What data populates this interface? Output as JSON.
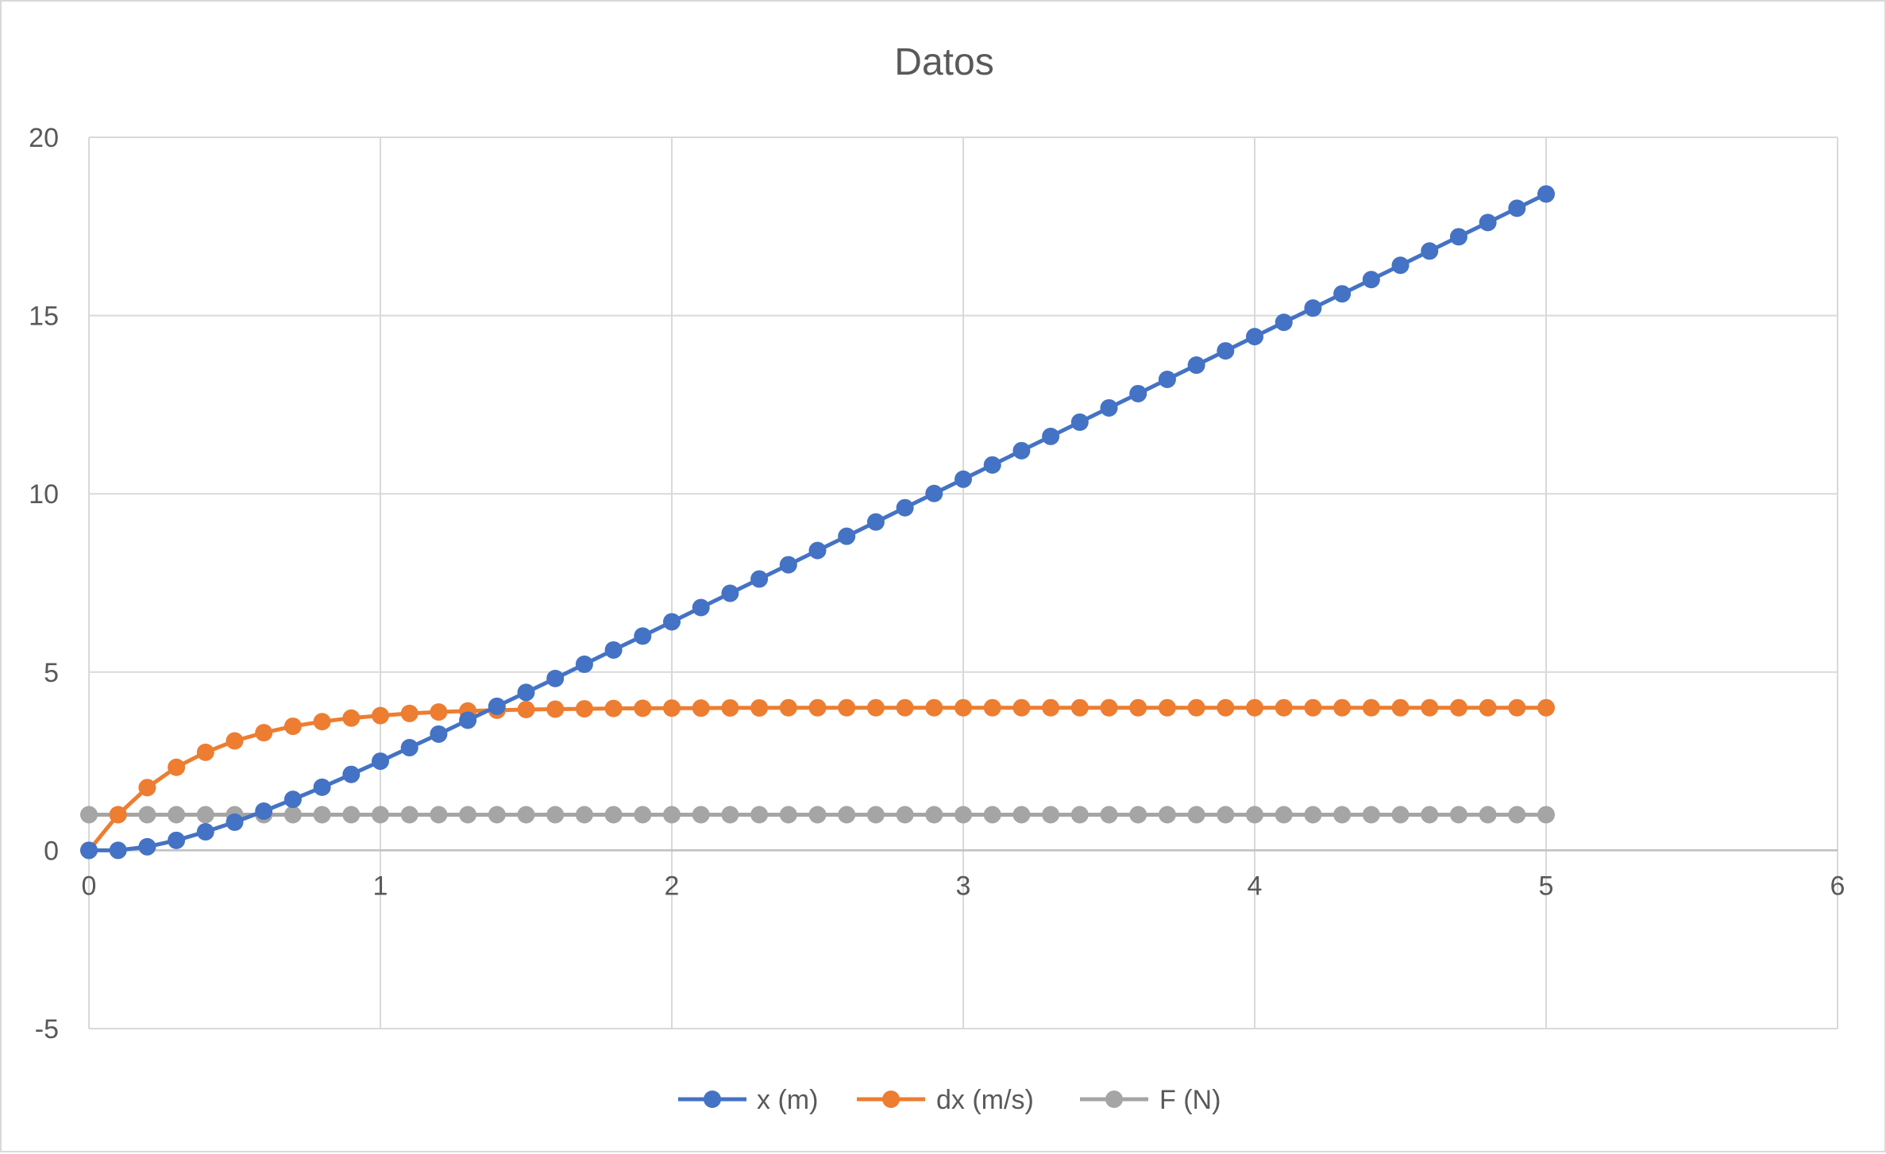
{
  "chart_data": {
    "type": "scatter",
    "title": "Datos",
    "xlabel": "",
    "ylabel": "",
    "xlim": [
      0,
      6
    ],
    "ylim": [
      -5,
      20
    ],
    "x_ticks": [
      0,
      1,
      2,
      3,
      4,
      5,
      6
    ],
    "y_ticks": [
      -5,
      0,
      5,
      10,
      15,
      20
    ],
    "grid": true,
    "legend_position": "bottom",
    "x": [
      0,
      0.1,
      0.2,
      0.3,
      0.4,
      0.5,
      0.6,
      0.7,
      0.8,
      0.9,
      1.0,
      1.1,
      1.2,
      1.3,
      1.4,
      1.5,
      1.6,
      1.7,
      1.8,
      1.9,
      2.0,
      2.1,
      2.2,
      2.3,
      2.4,
      2.5,
      2.6,
      2.7,
      2.8,
      2.9,
      3.0,
      3.1,
      3.2,
      3.3,
      3.4,
      3.5,
      3.6,
      3.7,
      3.8,
      3.9,
      4.0,
      4.1,
      4.2,
      4.3,
      4.4,
      4.5,
      4.6,
      4.7,
      4.8,
      4.9,
      5.0
    ],
    "series": [
      {
        "name": "x (m)",
        "color": "#4472c4",
        "values": [
          0,
          0,
          0.1,
          0.28,
          0.52,
          0.79,
          1.1,
          1.43,
          1.77,
          2.13,
          2.5,
          2.88,
          3.26,
          3.65,
          4.04,
          4.43,
          4.82,
          5.22,
          5.62,
          6.01,
          6.41,
          6.81,
          7.21,
          7.61,
          8.01,
          8.41,
          8.81,
          9.21,
          9.61,
          10.01,
          10.41,
          10.81,
          11.21,
          11.61,
          12.01,
          12.41,
          12.81,
          13.21,
          13.61,
          14.01,
          14.41,
          14.81,
          15.21,
          15.61,
          16.01,
          16.41,
          16.81,
          17.21,
          17.61,
          18.01,
          18.41
        ]
      },
      {
        "name": "dx (m/s)",
        "color": "#ed7d31",
        "values": [
          0,
          1.0,
          1.76,
          2.33,
          2.75,
          3.07,
          3.3,
          3.48,
          3.61,
          3.71,
          3.78,
          3.84,
          3.88,
          3.91,
          3.93,
          3.95,
          3.96,
          3.97,
          3.98,
          3.985,
          3.99,
          3.99,
          3.995,
          3.995,
          4.0,
          4.0,
          4.0,
          4.0,
          4.0,
          4.0,
          4.0,
          4.0,
          4.0,
          4.0,
          4.0,
          4.0,
          4.0,
          4.0,
          4.0,
          4.0,
          4.0,
          4.0,
          4.0,
          4.0,
          4.0,
          4.0,
          4.0,
          4.0,
          4.0,
          4.0,
          4.0
        ]
      },
      {
        "name": "F (N)",
        "color": "#a5a5a5",
        "values": [
          1,
          1,
          1,
          1,
          1,
          1,
          1,
          1,
          1,
          1,
          1,
          1,
          1,
          1,
          1,
          1,
          1,
          1,
          1,
          1,
          1,
          1,
          1,
          1,
          1,
          1,
          1,
          1,
          1,
          1,
          1,
          1,
          1,
          1,
          1,
          1,
          1,
          1,
          1,
          1,
          1,
          1,
          1,
          1,
          1,
          1,
          1,
          1,
          1,
          1,
          1
        ]
      }
    ]
  }
}
